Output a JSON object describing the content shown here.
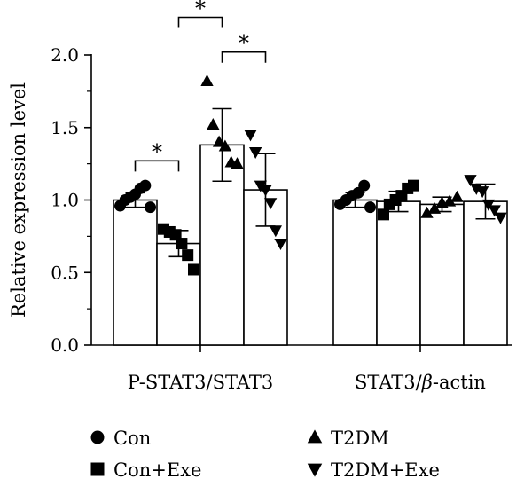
{
  "chart_data": {
    "type": "bar",
    "ylabel": "Relative expression level",
    "ylim": [
      0,
      2.0
    ],
    "yticks": [
      "0.0",
      "0.5",
      "1.0",
      "1.5",
      "2.0"
    ],
    "grid": false,
    "legend_position": "bottom",
    "categories": [
      {
        "prefix": "P-STAT3/STAT3",
        "italic": "",
        "suffix": ""
      },
      {
        "prefix": "STAT3/",
        "italic": "β",
        "suffix": "-actin"
      }
    ],
    "series": [
      {
        "name": "Con",
        "marker": "circle",
        "values": [
          1.0,
          1.0
        ],
        "err": [
          0.05,
          0.05
        ],
        "points": [
          [
            0.96,
            1.0,
            1.02,
            1.04,
            1.08,
            1.1,
            0.95
          ],
          [
            0.97,
            1.0,
            1.03,
            1.05,
            1.1,
            0.95
          ]
        ]
      },
      {
        "name": "Con+Exe",
        "marker": "square",
        "values": [
          0.7,
          0.99
        ],
        "err": [
          0.09,
          0.07
        ],
        "points": [
          [
            0.8,
            0.78,
            0.76,
            0.7,
            0.62,
            0.52
          ],
          [
            0.9,
            0.97,
            1.0,
            1.03,
            1.08,
            1.1
          ]
        ]
      },
      {
        "name": "T2DM",
        "marker": "triangle-up",
        "values": [
          1.38,
          0.97
        ],
        "err": [
          0.25,
          0.05
        ],
        "points": [
          [
            1.82,
            1.52,
            1.4,
            1.37,
            1.26,
            1.25
          ],
          [
            0.91,
            0.94,
            0.98,
            0.99,
            1.02
          ]
        ]
      },
      {
        "name": "T2DM+Exe",
        "marker": "triangle-down",
        "values": [
          1.07,
          0.99
        ],
        "err": [
          0.25,
          0.12
        ],
        "points": [
          [
            1.45,
            1.33,
            1.1,
            1.07,
            0.98,
            0.79,
            0.7
          ],
          [
            1.14,
            1.08,
            1.06,
            0.97,
            0.93,
            0.88
          ]
        ]
      }
    ],
    "significance": [
      {
        "group": 0,
        "from_series": 0,
        "to_series": 1,
        "level": 1.27,
        "label": "*"
      },
      {
        "group": 0,
        "from_series": 1,
        "to_series": 2,
        "level": 2.26,
        "label": "*"
      },
      {
        "group": 0,
        "from_series": 2,
        "to_series": 3,
        "level": 2.02,
        "label": "*"
      }
    ]
  }
}
